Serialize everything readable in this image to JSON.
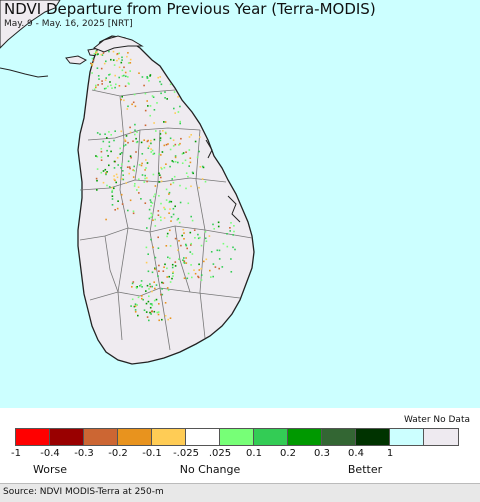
{
  "title": "NDVI Departure from Previous Year (Terra-MODIS)",
  "subtitle": "May. 9 - May. 16, 2025 [NRT]",
  "legend": {
    "water_label": "Water No Data",
    "ticks": [
      "-1",
      "-0.4",
      "-0.3",
      "-0.2",
      "-0.1",
      "-.025",
      ".025",
      "0.1",
      "0.2",
      "0.3",
      "0.4",
      "1"
    ],
    "colors": [
      "#ff0000",
      "#990000",
      "#cc6633",
      "#e8931e",
      "#ffcc55",
      "#ffffff",
      "#77ff77",
      "#33cc55",
      "#009900",
      "#336633",
      "#003300",
      "#ccffff",
      "#eeeaf0"
    ],
    "worse_label": "Worse",
    "no_change_label": "No Change",
    "better_label": "Better"
  },
  "source": "Source: NDVI MODIS-Terra at 250-m",
  "map_colors": {
    "water": "#ccffff",
    "land": "#efebf0",
    "border": "#222222",
    "district": "#777777"
  }
}
